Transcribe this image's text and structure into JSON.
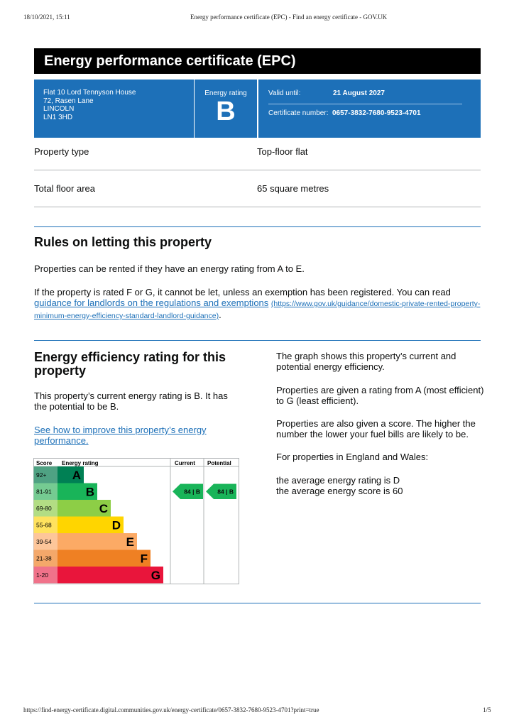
{
  "print_header": {
    "datetime": "18/10/2021, 15:11",
    "page_title": "Energy performance certificate (EPC) - Find an energy certificate - GOV.UK"
  },
  "print_footer": {
    "url": "https://find-energy-certificate.digital.communities.gov.uk/energy-certificate/0657-3832-7680-9523-4701?print=true",
    "page": "1/5"
  },
  "title": "Energy performance certificate (EPC)",
  "address": [
    "Flat 10 Lord Tennyson House",
    "72, Rasen Lane",
    "LINCOLN",
    "LN1 3HD"
  ],
  "rating": {
    "label": "Energy rating",
    "value": "B"
  },
  "valid": {
    "label": "Valid until:",
    "value": "21 August 2027"
  },
  "certificate": {
    "label": "Certificate number:",
    "value": "0657-3832-7680-9523-4701"
  },
  "summary": [
    {
      "label": "Property type",
      "value": "Top-floor flat"
    },
    {
      "label": "Total floor area",
      "value": "65 square metres"
    }
  ],
  "rules": {
    "heading": "Rules on letting this property",
    "p1": "Properties can be rented if they have an energy rating from A to E.",
    "p2": "If the property is rated F or G, it cannot be let, unless an exemption has been registered. You can read",
    "link": "guidance for landlords on the regulations and exemptions",
    "link_url": "(https://www.gov.uk/guidance/domestic-private-rented-property-minimum-energy-efficiency-standard-landlord-guidance)",
    "end": "."
  },
  "efficiency": {
    "heading": "Energy efficiency rating for this property",
    "p1": "This property’s current energy rating is B. It has the potential to be B.",
    "link": "See how to improve this property’s energy performance.",
    "right": [
      "The graph shows this property’s current and potential energy efficiency.",
      "Properties are given a rating from A (most efficient) to G (least efficient).",
      "Properties are also given a score. The higher the number the lower your fuel bills are likely to be.",
      "For properties in England and Wales:"
    ],
    "avg_rating": "the average energy rating is D",
    "avg_score": "the average energy score is 60"
  },
  "chart_data": {
    "type": "table",
    "headers": [
      "Score",
      "Energy rating",
      "Current",
      "Potential"
    ],
    "bands": [
      {
        "score": "92+",
        "letter": "A",
        "color": "#008054",
        "score_color": "#4fa283"
      },
      {
        "score": "81-91",
        "letter": "B",
        "color": "#19b459",
        "score_color": "#75cb92"
      },
      {
        "score": "69-80",
        "letter": "C",
        "color": "#8dce46",
        "score_color": "#b3dd84"
      },
      {
        "score": "55-68",
        "letter": "D",
        "color": "#ffd500",
        "score_color": "#ffe25e"
      },
      {
        "score": "39-54",
        "letter": "E",
        "color": "#fcaa65",
        "score_color": "#fdc69a"
      },
      {
        "score": "21-38",
        "letter": "F",
        "color": "#ef8023",
        "score_color": "#f4a86a"
      },
      {
        "score": "1-20",
        "letter": "G",
        "color": "#e9153b",
        "score_color": "#f0728a"
      }
    ],
    "current": {
      "score": 84,
      "letter": "B"
    },
    "potential": {
      "score": 84,
      "letter": "B"
    }
  }
}
